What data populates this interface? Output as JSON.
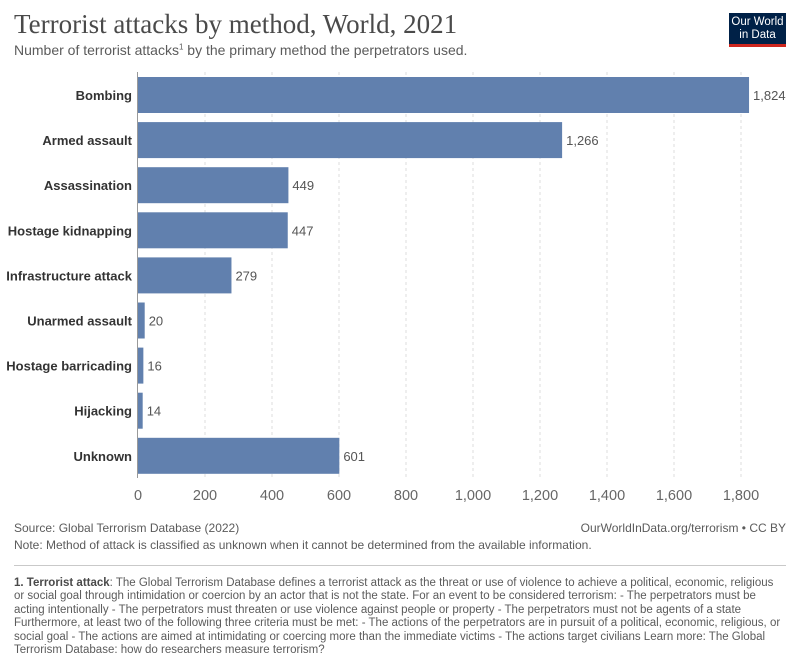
{
  "header": {
    "title": "Terrorist attacks by method, World, 2021",
    "subtitle": "Number of terrorist attacks",
    "subtitle_sup": "1",
    "subtitle_rest": " by the primary method the perpetrators used."
  },
  "logo": {
    "line1": "Our World",
    "line2": "in Data"
  },
  "colors": {
    "bar": "#6180ae",
    "grid": "#dddddd",
    "label": "#333333",
    "value": "#555555",
    "logo_bg": "#002147",
    "logo_accent": "#ce261e"
  },
  "chart_data": {
    "type": "bar",
    "orientation": "horizontal",
    "title": "Terrorist attacks by method, World, 2021",
    "categories": [
      "Bombing",
      "Armed assault",
      "Assassination",
      "Hostage kidnapping",
      "Infrastructure attack",
      "Unarmed assault",
      "Hostage barricading",
      "Hijacking",
      "Unknown"
    ],
    "values": [
      1824,
      1266,
      449,
      447,
      279,
      20,
      16,
      14,
      601
    ],
    "value_labels": [
      "1,824",
      "1,266",
      "449",
      "447",
      "279",
      "20",
      "16",
      "14",
      "601"
    ],
    "xlim": [
      0,
      1850
    ],
    "ticks": [
      0,
      200,
      400,
      600,
      800,
      1000,
      1200,
      1400,
      1600,
      1800
    ],
    "tick_labels": [
      "0",
      "200",
      "400",
      "600",
      "800",
      "1,000",
      "1,200",
      "1,400",
      "1,600",
      "1,800"
    ],
    "grid": true
  },
  "footer": {
    "source": "Source: Global Terrorism Database (2022)",
    "credit": "OurWorldInData.org/terrorism • CC BY",
    "note": "Note: Method of attack is classified as unknown when it cannot be determined from the available information.",
    "footnote_label": "1. Terrorist attack",
    "footnote_text": ": The Global Terrorism Database defines a terrorist attack as the threat or use of violence to achieve a political, economic, religious or social goal through intimidation or coercion by an actor that is not the state. For an event to be considered terrorism: - The perpetrators must be acting intentionally - The perpetrators must threaten or use violence against people or property - The perpetrators must not be agents of a state Furthermore, at least two of the following three criteria must be met: - The actions of the perpetrators are in pursuit of a political, economic, religious, or social goal - The actions are aimed at intimidating or coercing more than the immediate victims - The actions target civilians Learn more: The Global Terrorism Database: how do researchers measure terrorism?"
  }
}
